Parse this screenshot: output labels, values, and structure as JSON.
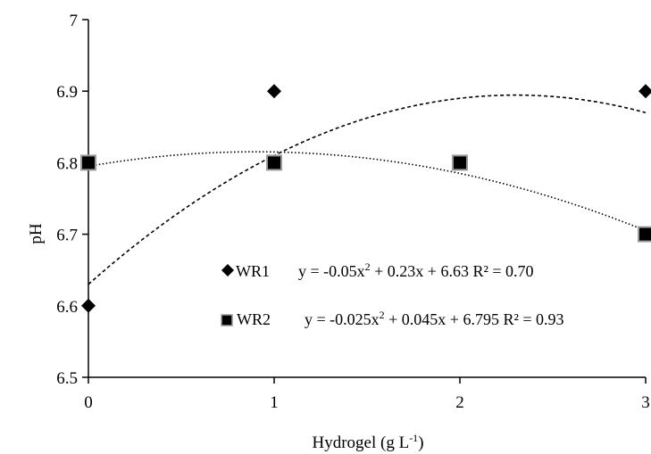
{
  "chart_data": {
    "type": "scatter",
    "xlabel_main": "Hydrogel (g L",
    "xlabel_sup": "-1",
    "xlabel_end": ")",
    "ylabel": "pH",
    "xlim": [
      0,
      3
    ],
    "ylim": [
      6.5,
      7.0
    ],
    "x_ticks": [
      "0",
      "1",
      "2",
      "3"
    ],
    "y_ticks": [
      "6.5",
      "6.6",
      "6.7",
      "6.8",
      "6.9",
      "7"
    ],
    "grid": false,
    "legend_position": "bottom-right",
    "series": [
      {
        "name": "WR1",
        "marker": "diamond",
        "x": [
          0,
          1,
          3
        ],
        "y": [
          6.6,
          6.9,
          6.9
        ],
        "trend": {
          "a": -0.05,
          "b": 0.23,
          "c": 6.63,
          "style": "dashed"
        },
        "equation_parts": [
          "y = -0.05x",
          "2",
          " + 0.23x + 6.63 R² = 0.70"
        ]
      },
      {
        "name": "WR2",
        "marker": "square",
        "x": [
          0,
          1,
          2,
          3
        ],
        "y": [
          6.8,
          6.8,
          6.8,
          6.7
        ],
        "trend": {
          "a": -0.025,
          "b": 0.045,
          "c": 6.795,
          "style": "dotted"
        },
        "equation_parts": [
          "y = -0.025x",
          "2",
          " + 0.045x + 6.795 R² = 0.93"
        ]
      }
    ]
  }
}
